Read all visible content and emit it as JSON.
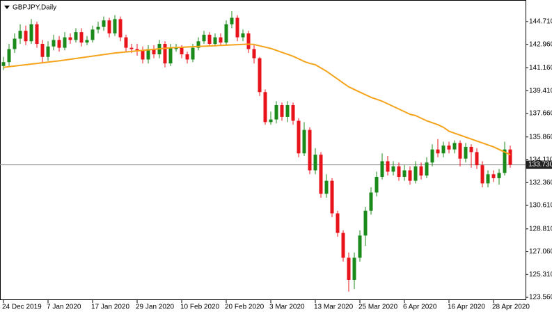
{
  "chart_data": {
    "type": "candlestick",
    "title": "GBPJPY,Daily",
    "categories": [
      "24 Dec 2019",
      null,
      null,
      null,
      null,
      null,
      null,
      null,
      "7 Jan 2020",
      null,
      null,
      null,
      null,
      null,
      null,
      null,
      "17 Jan 2020",
      null,
      null,
      null,
      null,
      null,
      null,
      null,
      "29 Jan 2020",
      null,
      null,
      null,
      null,
      null,
      null,
      null,
      "10 Feb 2020",
      null,
      null,
      null,
      null,
      null,
      null,
      null,
      "20 Feb 2020",
      null,
      null,
      null,
      null,
      null,
      null,
      null,
      "3 Mar 2020",
      null,
      null,
      null,
      null,
      null,
      null,
      null,
      "13 Mar 2020",
      null,
      null,
      null,
      null,
      null,
      null,
      null,
      "25 Mar 2020",
      null,
      null,
      null,
      null,
      null,
      null,
      null,
      "6 Apr 2020",
      null,
      null,
      null,
      null,
      null,
      null,
      null,
      "16 Apr 2020",
      null,
      null,
      null,
      null,
      null,
      null,
      null,
      "28 Apr 2020",
      null,
      null,
      null
    ],
    "series": [
      {
        "type": "candlestick",
        "up_color": "#1a8a1a",
        "down_color": "#e8141b",
        "open": [
          141.3,
          141.6,
          142.6,
          143.4,
          144.0,
          143.2,
          144.5,
          143.0,
          142.0,
          142.8,
          143.3,
          142.7,
          143.5,
          143.3,
          143.9,
          143.1,
          143.3,
          144.1,
          144.3,
          144.8,
          143.8,
          144.9,
          143.5,
          142.7,
          142.6,
          142.5,
          141.8,
          142.6,
          142.2,
          143.0,
          141.5,
          142.6,
          142.7,
          142.2,
          141.8,
          142.7,
          143.2,
          143.7,
          143.0,
          143.5,
          143.1,
          144.5,
          145.0,
          143.5,
          143.8,
          142.6,
          141.9,
          139.3,
          137.0,
          137.2,
          138.3,
          137.4,
          138.3,
          137.1,
          134.6,
          136.4,
          133.3,
          134.5,
          131.5,
          132.5,
          130.0,
          128.5,
          126.6,
          124.9,
          126.6,
          128.3,
          130.2,
          131.6,
          132.8,
          134.0,
          133.2,
          133.6,
          132.8,
          133.3,
          132.5,
          133.6,
          132.9,
          133.9,
          134.9,
          134.6,
          135.2,
          134.9,
          135.4,
          134.2,
          135.1,
          134.7,
          133.7,
          132.3,
          133.0,
          132.7,
          133.1,
          134.9
        ],
        "high": [
          142.0,
          143.0,
          143.8,
          144.5,
          144.4,
          144.9,
          144.7,
          143.3,
          143.2,
          143.7,
          143.6,
          143.9,
          143.8,
          144.2,
          144.2,
          143.6,
          144.4,
          144.7,
          145.1,
          145.0,
          145.2,
          145.1,
          143.7,
          143.0,
          143.0,
          142.8,
          142.9,
          142.9,
          143.3,
          143.2,
          143.0,
          143.0,
          142.9,
          142.4,
          143.0,
          143.5,
          144.0,
          143.9,
          143.8,
          143.8,
          144.8,
          145.5,
          145.2,
          144.1,
          144.0,
          142.9,
          142.0,
          139.5,
          137.8,
          138.6,
          138.5,
          138.6,
          138.5,
          137.3,
          137.0,
          136.6,
          135.0,
          134.7,
          133.0,
          132.7,
          130.2,
          128.7,
          127.0,
          127.0,
          128.7,
          130.5,
          132.0,
          133.2,
          134.6,
          134.4,
          134.0,
          133.9,
          133.7,
          133.6,
          134.0,
          133.9,
          134.3,
          135.3,
          135.7,
          135.5,
          135.5,
          135.6,
          135.6,
          135.4,
          135.3,
          135.0,
          134.0,
          133.3,
          133.3,
          133.4,
          135.5,
          135.2
        ],
        "low": [
          141.0,
          141.3,
          142.3,
          143.0,
          142.9,
          143.0,
          142.7,
          141.5,
          141.7,
          142.5,
          142.4,
          142.5,
          143.0,
          143.1,
          142.8,
          142.9,
          143.1,
          143.8,
          144.0,
          143.5,
          143.6,
          143.2,
          142.4,
          142.3,
          142.1,
          141.5,
          141.5,
          141.9,
          141.9,
          141.2,
          141.3,
          142.4,
          141.9,
          141.5,
          141.6,
          142.5,
          143.0,
          142.8,
          142.8,
          142.9,
          142.9,
          144.2,
          143.2,
          143.2,
          142.3,
          141.5,
          139.0,
          136.8,
          136.8,
          136.9,
          137.1,
          137.0,
          136.8,
          134.3,
          134.4,
          133.0,
          133.0,
          131.2,
          131.2,
          129.7,
          128.2,
          126.3,
          124.0,
          124.2,
          126.3,
          127.5,
          129.9,
          131.3,
          132.6,
          132.9,
          132.9,
          132.5,
          132.5,
          132.2,
          132.3,
          132.6,
          132.7,
          133.6,
          134.3,
          134.3,
          134.6,
          134.6,
          133.6,
          133.9,
          133.5,
          133.4,
          132.0,
          132.0,
          132.4,
          132.2,
          132.9,
          133.5
        ],
        "close": [
          141.6,
          142.6,
          143.4,
          144.0,
          143.2,
          144.5,
          143.0,
          142.0,
          142.8,
          143.3,
          142.7,
          143.5,
          143.3,
          143.9,
          143.1,
          143.3,
          144.1,
          144.3,
          144.8,
          143.8,
          144.9,
          143.5,
          142.7,
          142.6,
          142.5,
          141.8,
          142.6,
          142.2,
          143.0,
          141.5,
          142.7,
          142.7,
          142.2,
          141.8,
          142.7,
          143.2,
          143.7,
          143.0,
          143.5,
          143.1,
          144.5,
          145.0,
          143.5,
          143.8,
          142.6,
          141.9,
          139.3,
          137.0,
          137.2,
          138.3,
          137.4,
          138.3,
          137.1,
          134.6,
          136.4,
          133.3,
          134.5,
          131.5,
          132.5,
          130.0,
          128.5,
          126.6,
          124.9,
          126.6,
          128.3,
          130.2,
          131.6,
          132.8,
          134.0,
          133.2,
          133.6,
          132.8,
          133.3,
          132.5,
          133.6,
          132.9,
          133.9,
          134.9,
          134.6,
          135.2,
          134.9,
          135.4,
          134.2,
          135.1,
          134.7,
          133.7,
          132.3,
          133.0,
          132.7,
          133.1,
          134.9,
          133.73
        ]
      },
      {
        "type": "line",
        "color": "#f5a31a",
        "values": [
          141.2,
          141.25,
          141.3,
          141.35,
          141.4,
          141.45,
          141.5,
          141.55,
          141.6,
          141.65,
          141.7,
          141.76,
          141.82,
          141.88,
          141.94,
          142.0,
          142.06,
          142.12,
          142.18,
          142.24,
          142.3,
          142.34,
          142.38,
          142.42,
          142.46,
          142.5,
          142.54,
          142.58,
          142.62,
          142.66,
          142.7,
          142.72,
          142.74,
          142.76,
          142.78,
          142.8,
          142.82,
          142.84,
          142.86,
          142.88,
          142.9,
          142.92,
          142.94,
          142.96,
          142.98,
          142.95,
          142.85,
          142.75,
          142.65,
          142.5,
          142.35,
          142.2,
          142.05,
          141.85,
          141.65,
          141.5,
          141.4,
          141.15,
          140.9,
          140.6,
          140.3,
          140.0,
          139.7,
          139.5,
          139.3,
          139.1,
          138.9,
          138.75,
          138.6,
          138.4,
          138.2,
          138.0,
          137.8,
          137.6,
          137.5,
          137.3,
          137.1,
          136.95,
          136.8,
          136.6,
          136.3,
          136.15,
          136.0,
          135.85,
          135.7,
          135.55,
          135.4,
          135.25,
          135.1,
          134.9,
          134.7,
          134.5
        ]
      }
    ],
    "price_line": {
      "value": 133.73,
      "label": "133.730"
    },
    "ylim": [
      123.35,
      146.31
    ],
    "yticks": [
      {
        "value": 144.71,
        "label": "144.710"
      },
      {
        "value": 142.96,
        "label": "142.960"
      },
      {
        "value": 141.16,
        "label": "141.160"
      },
      {
        "value": 139.41,
        "label": "139.410"
      },
      {
        "value": 137.66,
        "label": "137.660"
      },
      {
        "value": 135.86,
        "label": "135.860"
      },
      {
        "value": 134.11,
        "label": "134.110"
      },
      {
        "value": 132.36,
        "label": "132.360"
      },
      {
        "value": 130.61,
        "label": "130.610"
      },
      {
        "value": 128.81,
        "label": "128.810"
      },
      {
        "value": 127.06,
        "label": "127.060"
      },
      {
        "value": 125.31,
        "label": "125.310"
      },
      {
        "value": 123.56,
        "label": "123.560"
      }
    ],
    "grid": false
  }
}
